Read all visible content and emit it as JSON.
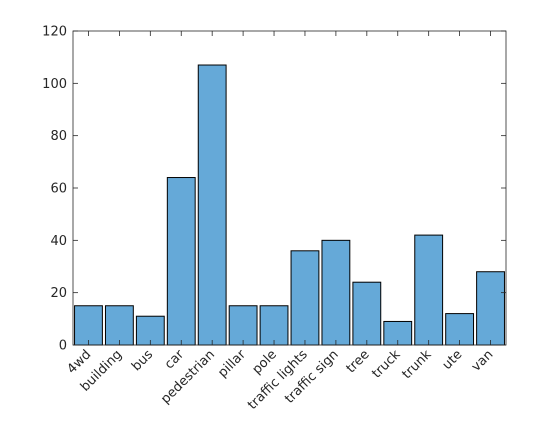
{
  "chart_data": {
    "type": "bar",
    "title": "",
    "xlabel": "",
    "ylabel": "",
    "categories": [
      "4wd",
      "building",
      "bus",
      "car",
      "pedestrian",
      "pillar",
      "pole",
      "traffic lights",
      "traffic sign",
      "tree",
      "truck",
      "trunk",
      "ute",
      "van"
    ],
    "values": [
      15,
      15,
      11,
      64,
      107,
      15,
      15,
      36,
      40,
      24,
      9,
      42,
      12,
      28
    ],
    "ylim": [
      0,
      120
    ],
    "yticks": [
      0,
      20,
      40,
      60,
      80,
      100,
      120
    ],
    "grid": false,
    "legend": "none",
    "colors": {
      "bar_fill": "#65a9d8",
      "bar_edge": "#000000",
      "axis": "#262626"
    }
  }
}
